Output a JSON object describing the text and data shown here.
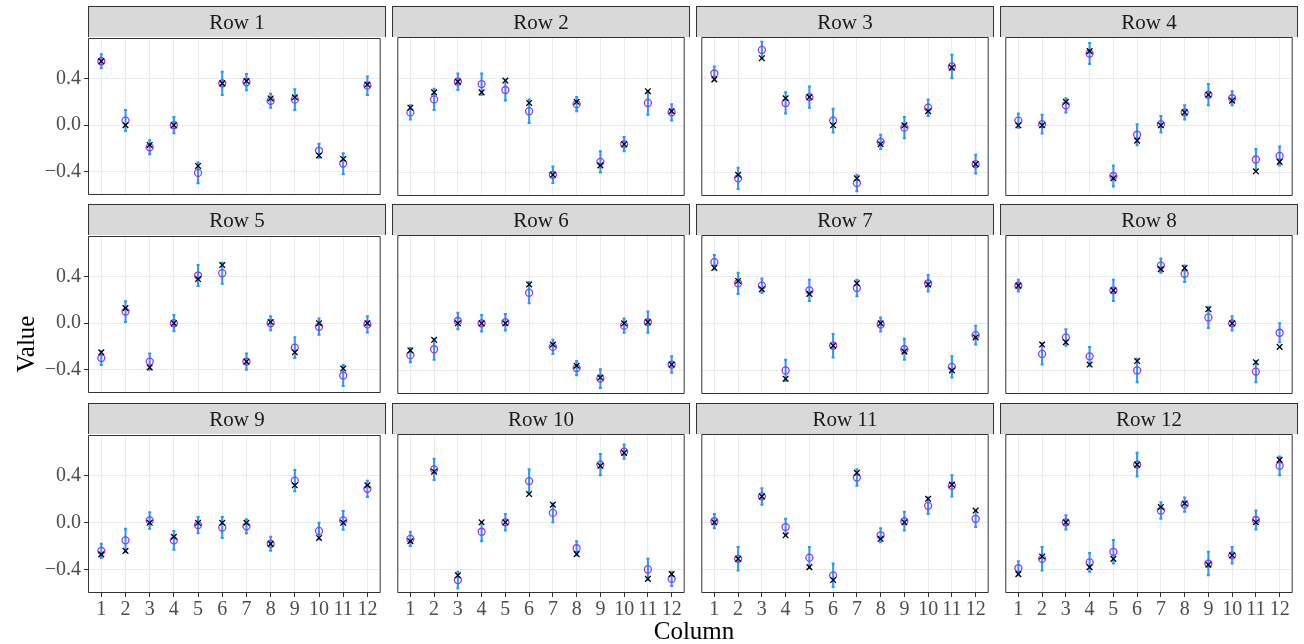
{
  "chart_data": [
    {
      "type": "scatter",
      "title": "Row 1",
      "x": [
        1,
        2,
        3,
        4,
        5,
        6,
        7,
        8,
        9,
        10,
        11,
        12
      ],
      "xlim": [
        0.45,
        12.55
      ],
      "xticks": [
        1,
        2,
        3,
        4,
        5,
        6,
        7,
        8,
        9,
        10,
        11,
        12
      ],
      "ylim": [
        -0.6,
        0.75
      ],
      "yticks": [
        {
          "value": -0.4,
          "label": "−0.4"
        },
        {
          "value": 0,
          "label": "0.0"
        },
        {
          "value": 0.4,
          "label": "0.4"
        }
      ],
      "grid": true,
      "tick_labels": "y",
      "series": [
        {
          "color": "#9933ff",
          "marker": "circle",
          "values": [
            0.55,
            0.04,
            -0.19,
            0.0,
            -0.41,
            0.36,
            0.37,
            0.21,
            0.22,
            -0.22,
            -0.33,
            0.34
          ],
          "errors": [
            0.06,
            0.09,
            0.06,
            0.07,
            0.09,
            0.1,
            0.07,
            0.06,
            0.09,
            0.06,
            0.09,
            0.08
          ]
        },
        {
          "color": "#000000",
          "marker": "cross",
          "values": [
            0.55,
            0.0,
            -0.17,
            0.0,
            -0.35,
            0.36,
            0.38,
            0.23,
            0.24,
            -0.26,
            -0.29,
            0.35
          ]
        }
      ]
    },
    {
      "type": "scatter",
      "title": "Row 2",
      "x": [
        1,
        2,
        3,
        4,
        5,
        6,
        7,
        8,
        9,
        10,
        11,
        12
      ],
      "xlim": [
        0.45,
        12.55
      ],
      "xticks": [
        1,
        2,
        3,
        4,
        5,
        6,
        7,
        8,
        9,
        10,
        11,
        12
      ],
      "ylim": [
        -0.6,
        0.75
      ],
      "yticks": [
        -0.4,
        0,
        0.4
      ],
      "grid": true,
      "tick_labels": false,
      "series": [
        {
          "color": "#9933ff",
          "marker": "circle",
          "values": [
            0.11,
            0.22,
            0.37,
            0.35,
            0.3,
            0.12,
            -0.42,
            0.18,
            -0.31,
            -0.16,
            0.19,
            0.11
          ],
          "errors": [
            0.06,
            0.09,
            0.07,
            0.09,
            0.09,
            0.1,
            0.07,
            0.06,
            0.09,
            0.06,
            0.1,
            0.07
          ]
        },
        {
          "color": "#000000",
          "marker": "cross",
          "values": [
            0.15,
            0.28,
            0.37,
            0.28,
            0.38,
            0.19,
            -0.42,
            0.2,
            -0.34,
            -0.16,
            0.29,
            0.12
          ]
        }
      ]
    },
    {
      "type": "scatter",
      "title": "Row 3",
      "x": [
        1,
        2,
        3,
        4,
        5,
        6,
        7,
        8,
        9,
        10,
        11,
        12
      ],
      "xlim": [
        0.45,
        12.55
      ],
      "xticks": [
        1,
        2,
        3,
        4,
        5,
        6,
        7,
        8,
        9,
        10,
        11,
        12
      ],
      "ylim": [
        -0.6,
        0.75
      ],
      "yticks": [
        -0.4,
        0,
        0.4
      ],
      "grid": true,
      "tick_labels": false,
      "series": [
        {
          "color": "#9933ff",
          "marker": "circle",
          "values": [
            0.44,
            -0.45,
            0.64,
            0.19,
            0.24,
            0.04,
            -0.49,
            -0.14,
            -0.02,
            0.15,
            0.5,
            -0.33
          ],
          "errors": [
            0.06,
            0.09,
            0.07,
            0.09,
            0.09,
            0.1,
            0.07,
            0.06,
            0.09,
            0.07,
            0.1,
            0.08
          ]
        },
        {
          "color": "#000000",
          "marker": "cross",
          "values": [
            0.39,
            -0.42,
            0.57,
            0.23,
            0.24,
            0.0,
            -0.45,
            -0.16,
            0.0,
            0.12,
            0.49,
            -0.33
          ]
        }
      ]
    },
    {
      "type": "scatter",
      "title": "Row 4",
      "x": [
        1,
        2,
        3,
        4,
        5,
        6,
        7,
        8,
        9,
        10,
        11,
        12
      ],
      "xlim": [
        0.45,
        12.55
      ],
      "xticks": [
        1,
        2,
        3,
        4,
        5,
        6,
        7,
        8,
        9,
        10,
        11,
        12
      ],
      "ylim": [
        -0.6,
        0.75
      ],
      "yticks": [
        -0.4,
        0,
        0.4
      ],
      "grid": true,
      "tick_labels": false,
      "series": [
        {
          "color": "#9933ff",
          "marker": "circle",
          "values": [
            0.04,
            0.01,
            0.17,
            0.61,
            -0.43,
            -0.08,
            0.01,
            0.11,
            0.26,
            0.23,
            -0.29,
            -0.26
          ],
          "errors": [
            0.06,
            0.08,
            0.06,
            0.09,
            0.09,
            0.09,
            0.07,
            0.06,
            0.09,
            0.06,
            0.09,
            0.08
          ]
        },
        {
          "color": "#000000",
          "marker": "cross",
          "values": [
            0.0,
            0.0,
            0.2,
            0.63,
            -0.45,
            -0.13,
            0.0,
            0.11,
            0.26,
            0.21,
            -0.39,
            -0.31
          ]
        }
      ]
    },
    {
      "type": "scatter",
      "title": "Row 5",
      "ylabel": "Value",
      "x": [
        1,
        2,
        3,
        4,
        5,
        6,
        7,
        8,
        9,
        10,
        11,
        12
      ],
      "xlim": [
        0.45,
        12.55
      ],
      "xticks": [
        1,
        2,
        3,
        4,
        5,
        6,
        7,
        8,
        9,
        10,
        11,
        12
      ],
      "ylim": [
        -0.6,
        0.75
      ],
      "yticks": [
        {
          "value": -0.4,
          "label": "−0.4"
        },
        {
          "value": 0,
          "label": "0.0"
        },
        {
          "value": 0.4,
          "label": "0.4"
        }
      ],
      "grid": true,
      "tick_labels": "y",
      "series": [
        {
          "color": "#9933ff",
          "marker": "circle",
          "values": [
            -0.3,
            0.1,
            -0.33,
            0.0,
            0.41,
            0.43,
            -0.33,
            0.0,
            -0.21,
            -0.03,
            -0.45,
            -0.01
          ],
          "errors": [
            0.06,
            0.09,
            0.07,
            0.07,
            0.09,
            0.09,
            0.07,
            0.06,
            0.09,
            0.07,
            0.09,
            0.07
          ]
        },
        {
          "color": "#000000",
          "marker": "cross",
          "values": [
            -0.25,
            0.13,
            -0.38,
            0.0,
            0.38,
            0.5,
            -0.33,
            0.01,
            -0.25,
            0.0,
            -0.39,
            0.0
          ]
        }
      ]
    },
    {
      "type": "scatter",
      "title": "Row 6",
      "x": [
        1,
        2,
        3,
        4,
        5,
        6,
        7,
        8,
        9,
        10,
        11,
        12
      ],
      "xlim": [
        0.45,
        12.55
      ],
      "xticks": [
        1,
        2,
        3,
        4,
        5,
        6,
        7,
        8,
        9,
        10,
        11,
        12
      ],
      "ylim": [
        -0.6,
        0.75
      ],
      "yticks": [
        -0.4,
        0,
        0.4
      ],
      "grid": true,
      "tick_labels": false,
      "series": [
        {
          "color": "#9933ff",
          "marker": "circle",
          "values": [
            -0.27,
            -0.22,
            0.02,
            0.0,
            0.01,
            0.26,
            -0.2,
            -0.38,
            -0.47,
            -0.02,
            0.01,
            -0.35
          ],
          "errors": [
            0.06,
            0.09,
            0.07,
            0.07,
            0.07,
            0.09,
            0.06,
            0.06,
            0.08,
            0.06,
            0.09,
            0.07
          ]
        },
        {
          "color": "#000000",
          "marker": "cross",
          "values": [
            -0.23,
            -0.14,
            0.0,
            0.0,
            0.0,
            0.33,
            -0.18,
            -0.36,
            -0.46,
            0.0,
            0.01,
            -0.35
          ]
        }
      ]
    },
    {
      "type": "scatter",
      "title": "Row 7",
      "x": [
        1,
        2,
        3,
        4,
        5,
        6,
        7,
        8,
        9,
        10,
        11,
        12
      ],
      "xlim": [
        0.45,
        12.55
      ],
      "xticks": [
        1,
        2,
        3,
        4,
        5,
        6,
        7,
        8,
        9,
        10,
        11,
        12
      ],
      "ylim": [
        -0.6,
        0.75
      ],
      "yticks": [
        -0.4,
        0,
        0.4
      ],
      "grid": true,
      "tick_labels": false,
      "series": [
        {
          "color": "#9933ff",
          "marker": "circle",
          "values": [
            0.52,
            0.34,
            0.32,
            -0.4,
            0.28,
            -0.19,
            0.3,
            -0.01,
            -0.22,
            0.34,
            -0.37,
            -0.1
          ],
          "errors": [
            0.06,
            0.09,
            0.06,
            0.09,
            0.09,
            0.1,
            0.07,
            0.06,
            0.09,
            0.07,
            0.09,
            0.08
          ]
        },
        {
          "color": "#000000",
          "marker": "cross",
          "values": [
            0.47,
            0.36,
            0.29,
            -0.47,
            0.25,
            -0.19,
            0.34,
            0.0,
            -0.24,
            0.33,
            -0.4,
            -0.12
          ]
        }
      ]
    },
    {
      "type": "scatter",
      "title": "Row 8",
      "x": [
        1,
        2,
        3,
        4,
        5,
        6,
        7,
        8,
        9,
        10,
        11,
        12
      ],
      "xlim": [
        0.45,
        12.55
      ],
      "xticks": [
        1,
        2,
        3,
        4,
        5,
        6,
        7,
        8,
        9,
        10,
        11,
        12
      ],
      "ylim": [
        -0.6,
        0.75
      ],
      "yticks": [
        -0.4,
        0,
        0.4
      ],
      "grid": true,
      "tick_labels": false,
      "series": [
        {
          "color": "#9933ff",
          "marker": "circle",
          "values": [
            0.32,
            -0.26,
            -0.12,
            -0.28,
            0.28,
            -0.4,
            0.49,
            0.42,
            0.05,
            0.0,
            -0.41,
            -0.08
          ],
          "errors": [
            0.05,
            0.09,
            0.07,
            0.08,
            0.09,
            0.1,
            0.06,
            0.07,
            0.09,
            0.06,
            0.09,
            0.08
          ]
        },
        {
          "color": "#000000",
          "marker": "cross",
          "values": [
            0.32,
            -0.18,
            -0.16,
            -0.35,
            0.28,
            -0.32,
            0.46,
            0.47,
            0.12,
            0.0,
            -0.33,
            -0.2
          ]
        }
      ]
    },
    {
      "type": "scatter",
      "title": "Row 9",
      "x": [
        1,
        2,
        3,
        4,
        5,
        6,
        7,
        8,
        9,
        10,
        11,
        12
      ],
      "xlim": [
        0.45,
        12.55
      ],
      "xticks": [
        1,
        2,
        3,
        4,
        5,
        6,
        7,
        8,
        9,
        10,
        11,
        12
      ],
      "ylim": [
        -0.6,
        0.75
      ],
      "yticks": [
        {
          "value": -0.4,
          "label": "−0.4"
        },
        {
          "value": 0,
          "label": "0.0"
        },
        {
          "value": 0.4,
          "label": "0.4"
        }
      ],
      "grid": true,
      "series": [
        {
          "color": "#9933ff",
          "marker": "circle",
          "values": [
            -0.24,
            -0.15,
            0.02,
            -0.15,
            -0.02,
            -0.04,
            -0.03,
            -0.18,
            0.36,
            -0.07,
            0.02,
            0.29
          ],
          "errors": [
            0.06,
            0.1,
            0.07,
            0.08,
            0.07,
            0.09,
            0.06,
            0.06,
            0.09,
            0.07,
            0.08,
            0.07
          ]
        },
        {
          "color": "#000000",
          "marker": "cross",
          "values": [
            -0.27,
            -0.24,
            0.0,
            -0.12,
            0.0,
            0.0,
            0.0,
            -0.18,
            0.32,
            -0.13,
            0.0,
            0.32
          ]
        }
      ]
    },
    {
      "type": "scatter",
      "title": "Row 10",
      "xlabel": "Column",
      "x": [
        1,
        2,
        3,
        4,
        5,
        6,
        7,
        8,
        9,
        10,
        11,
        12
      ],
      "xlim": [
        0.45,
        12.55
      ],
      "xticks": [
        1,
        2,
        3,
        4,
        5,
        6,
        7,
        8,
        9,
        10,
        11,
        12
      ],
      "ylim": [
        -0.6,
        0.75
      ],
      "yticks": [
        -0.4,
        0,
        0.4
      ],
      "grid": true,
      "tick_labels": "x",
      "series": [
        {
          "color": "#9933ff",
          "marker": "circle",
          "values": [
            -0.14,
            0.45,
            -0.49,
            -0.08,
            0.0,
            0.35,
            0.08,
            -0.22,
            0.49,
            0.6,
            -0.4,
            -0.48
          ],
          "errors": [
            0.06,
            0.09,
            0.07,
            0.08,
            0.07,
            0.1,
            0.08,
            0.06,
            0.09,
            0.06,
            0.09,
            0.06
          ]
        },
        {
          "color": "#000000",
          "marker": "cross",
          "values": [
            -0.16,
            0.43,
            -0.45,
            0.0,
            0.0,
            0.24,
            0.15,
            -0.27,
            0.48,
            0.59,
            -0.48,
            -0.44
          ]
        }
      ]
    },
    {
      "type": "scatter",
      "title": "Row 11",
      "x": [
        1,
        2,
        3,
        4,
        5,
        6,
        7,
        8,
        9,
        10,
        11,
        12
      ],
      "xlim": [
        0.45,
        12.55
      ],
      "xticks": [
        1,
        2,
        3,
        4,
        5,
        6,
        7,
        8,
        9,
        10,
        11,
        12
      ],
      "ylim": [
        -0.6,
        0.75
      ],
      "yticks": [
        -0.4,
        0,
        0.4
      ],
      "grid": true,
      "tick_labels": "x",
      "series": [
        {
          "color": "#9933ff",
          "marker": "circle",
          "values": [
            0.01,
            -0.31,
            0.22,
            -0.04,
            -0.3,
            -0.45,
            0.38,
            -0.11,
            0.01,
            0.14,
            0.31,
            0.03
          ],
          "errors": [
            0.06,
            0.1,
            0.07,
            0.07,
            0.09,
            0.1,
            0.07,
            0.06,
            0.08,
            0.07,
            0.09,
            0.07
          ]
        },
        {
          "color": "#000000",
          "marker": "cross",
          "values": [
            0.0,
            -0.31,
            0.22,
            -0.11,
            -0.38,
            -0.49,
            0.42,
            -0.14,
            0.0,
            0.2,
            0.32,
            0.1
          ]
        }
      ]
    },
    {
      "type": "scatter",
      "title": "Row 12",
      "x": [
        1,
        2,
        3,
        4,
        5,
        6,
        7,
        8,
        9,
        10,
        11,
        12
      ],
      "xlim": [
        0.45,
        12.55
      ],
      "xticks": [
        1,
        2,
        3,
        4,
        5,
        6,
        7,
        8,
        9,
        10,
        11,
        12
      ],
      "ylim": [
        -0.6,
        0.75
      ],
      "yticks": [
        -0.4,
        0,
        0.4
      ],
      "grid": true,
      "tick_labels": "x",
      "series": [
        {
          "color": "#9933ff",
          "marker": "circle",
          "values": [
            -0.39,
            -0.31,
            0.0,
            -0.34,
            -0.25,
            0.49,
            0.1,
            0.15,
            -0.35,
            -0.28,
            0.02,
            0.48
          ],
          "errors": [
            0.06,
            0.1,
            0.06,
            0.08,
            0.1,
            0.1,
            0.07,
            0.06,
            0.1,
            0.07,
            0.08,
            0.08
          ]
        },
        {
          "color": "#000000",
          "marker": "cross",
          "values": [
            -0.44,
            -0.29,
            0.0,
            -0.38,
            -0.31,
            0.49,
            0.13,
            0.16,
            -0.36,
            -0.28,
            0.0,
            0.53
          ]
        }
      ]
    }
  ]
}
